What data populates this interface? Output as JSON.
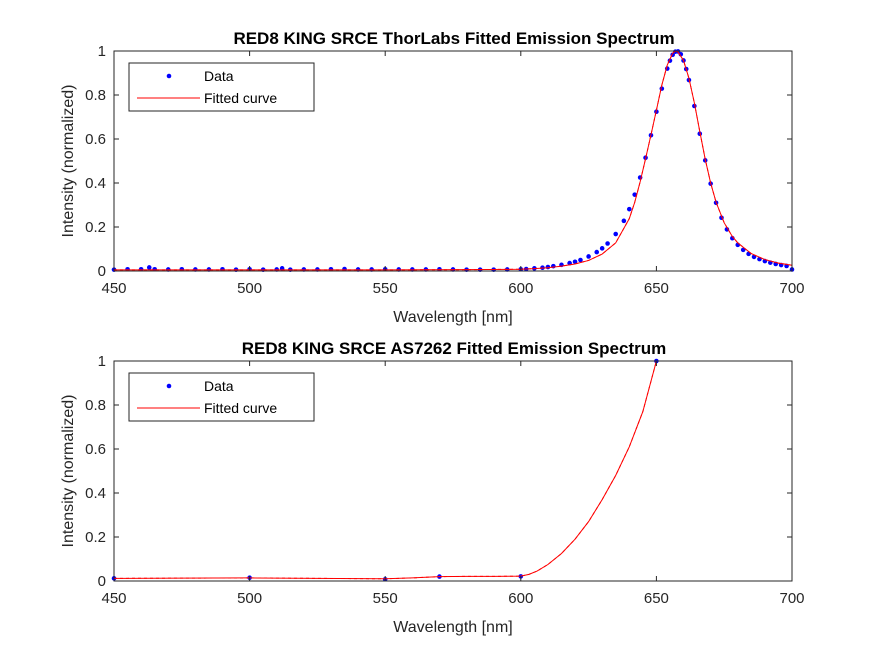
{
  "chart_data": [
    {
      "type": "line",
      "title": "RED8 KING SRCE ThorLabs Fitted Emission Spectrum",
      "xlabel": "Wavelength [nm]",
      "ylabel": "Intensity (normalized)",
      "xlim": [
        450,
        700
      ],
      "ylim": [
        0,
        1
      ],
      "xticks": [
        "450",
        "500",
        "550",
        "600",
        "650",
        "700"
      ],
      "yticks": [
        "0",
        "0.2",
        "0.4",
        "0.6",
        "0.8",
        "1"
      ],
      "legend_position": "top-left",
      "grid": false,
      "series": [
        {
          "name": "Data",
          "style": "points",
          "color": "#0000ff",
          "x": [
            450,
            455,
            460,
            463,
            465,
            470,
            475,
            480,
            485,
            490,
            495,
            500,
            505,
            510,
            512,
            515,
            520,
            525,
            530,
            535,
            540,
            545,
            550,
            555,
            560,
            565,
            570,
            575,
            580,
            585,
            590,
            595,
            600,
            602,
            605,
            608,
            610,
            612,
            615,
            618,
            620,
            622,
            625,
            628,
            630,
            632,
            635,
            638,
            640,
            642,
            644,
            646,
            648,
            650,
            652,
            654,
            655,
            656,
            657,
            658,
            659,
            660,
            661,
            662,
            664,
            666,
            668,
            670,
            672,
            674,
            676,
            678,
            680,
            682,
            684,
            686,
            688,
            690,
            692,
            694,
            696,
            698,
            700
          ],
          "y": [
            0.006,
            0.008,
            0.008,
            0.016,
            0.008,
            0.007,
            0.008,
            0.007,
            0.007,
            0.008,
            0.006,
            0.008,
            0.006,
            0.007,
            0.012,
            0.006,
            0.007,
            0.007,
            0.008,
            0.009,
            0.007,
            0.007,
            0.008,
            0.007,
            0.007,
            0.007,
            0.008,
            0.007,
            0.006,
            0.006,
            0.006,
            0.007,
            0.008,
            0.009,
            0.012,
            0.015,
            0.018,
            0.022,
            0.028,
            0.036,
            0.042,
            0.05,
            0.066,
            0.086,
            0.103,
            0.125,
            0.168,
            0.228,
            0.281,
            0.347,
            0.425,
            0.515,
            0.617,
            0.724,
            0.829,
            0.92,
            0.956,
            0.983,
            0.997,
            0.998,
            0.985,
            0.957,
            0.918,
            0.868,
            0.75,
            0.624,
            0.503,
            0.397,
            0.31,
            0.242,
            0.189,
            0.149,
            0.119,
            0.096,
            0.078,
            0.064,
            0.054,
            0.045,
            0.038,
            0.032,
            0.027,
            0.023,
            0.007
          ]
        },
        {
          "name": "Fitted curve",
          "style": "line",
          "color": "#ff0000",
          "x": [
            450,
            500,
            550,
            580,
            600,
            605,
            610,
            615,
            620,
            625,
            630,
            635,
            640,
            642,
            644,
            646,
            648,
            650,
            652,
            654,
            656,
            657,
            658,
            660,
            662,
            664,
            666,
            668,
            670,
            672,
            675,
            678,
            680,
            685,
            690,
            695,
            700
          ],
          "y": [
            0.005,
            0.005,
            0.005,
            0.006,
            0.008,
            0.011,
            0.015,
            0.022,
            0.032,
            0.048,
            0.077,
            0.128,
            0.238,
            0.312,
            0.405,
            0.51,
            0.619,
            0.731,
            0.845,
            0.936,
            0.99,
            1.0,
            0.995,
            0.957,
            0.876,
            0.764,
            0.634,
            0.508,
            0.4,
            0.313,
            0.219,
            0.157,
            0.128,
            0.079,
            0.052,
            0.036,
            0.026
          ]
        }
      ]
    },
    {
      "type": "line",
      "title": "RED8 KING SRCE AS7262 Fitted Emission Spectrum",
      "xlabel": "Wavelength [nm]",
      "ylabel": "Intensity (normalized)",
      "xlim": [
        450,
        700
      ],
      "ylim": [
        0,
        1
      ],
      "xticks": [
        "450",
        "500",
        "550",
        "600",
        "650",
        "700"
      ],
      "yticks": [
        "0",
        "0.2",
        "0.4",
        "0.6",
        "0.8",
        "1"
      ],
      "legend_position": "top-left",
      "grid": false,
      "series": [
        {
          "name": "Data",
          "style": "points",
          "color": "#0000ff",
          "x": [
            450,
            500,
            550,
            570,
            600,
            650
          ],
          "y": [
            0.012,
            0.015,
            0.008,
            0.02,
            0.021,
            1.0
          ]
        },
        {
          "name": "Fitted curve",
          "style": "line",
          "color": "#ff0000",
          "x": [
            450,
            475,
            500,
            525,
            550,
            560,
            570,
            580,
            590,
            600,
            603,
            606,
            610,
            615,
            620,
            625,
            630,
            635,
            640,
            645,
            650
          ],
          "y": [
            0.012,
            0.013,
            0.014,
            0.012,
            0.01,
            0.014,
            0.02,
            0.021,
            0.021,
            0.022,
            0.03,
            0.045,
            0.075,
            0.125,
            0.19,
            0.27,
            0.37,
            0.48,
            0.61,
            0.77,
            1.0
          ]
        }
      ]
    }
  ]
}
